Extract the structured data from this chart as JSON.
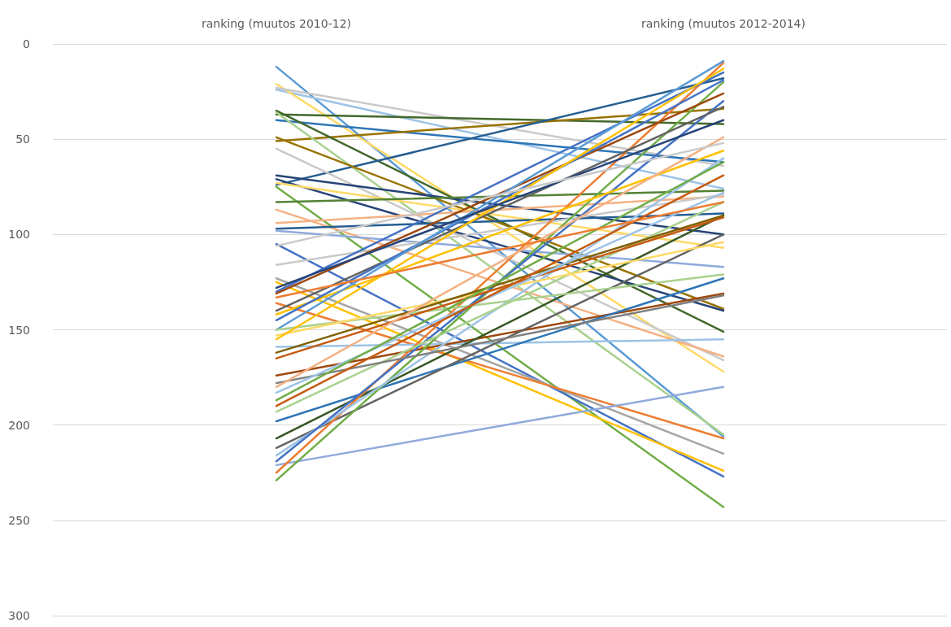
{
  "chart_data": {
    "type": "line",
    "categories": [
      "ranking (muutos 2010-12)",
      "ranking (muutos 2012-2014)"
    ],
    "ylim": [
      300,
      0
    ],
    "yticks": [
      0,
      50,
      100,
      150,
      200,
      250,
      300
    ],
    "grid": "y",
    "marker": "none",
    "line_style": "solid",
    "series": [
      {
        "color": "#5b9bd5",
        "values": [
          12,
          206
        ]
      },
      {
        "color": "#9dc3e6",
        "values": [
          24,
          76
        ]
      },
      {
        "color": "#ffd966",
        "values": [
          21,
          172
        ]
      },
      {
        "color": "#c9c9c9",
        "values": [
          23,
          64
        ]
      },
      {
        "color": "#43682b",
        "values": [
          37,
          42
        ]
      },
      {
        "color": "#2e75b6",
        "values": [
          40,
          62
        ]
      },
      {
        "color": "#997300",
        "values": [
          51,
          34
        ]
      },
      {
        "color": "#43682b",
        "values": [
          35,
          151
        ]
      },
      {
        "color": "#a9d18e",
        "values": [
          36,
          205
        ]
      },
      {
        "color": "#255e91",
        "values": [
          74,
          18
        ]
      },
      {
        "color": "#997300",
        "values": [
          49,
          139
        ]
      },
      {
        "color": "#c9c9c9",
        "values": [
          55,
          166
        ]
      },
      {
        "color": "#264478",
        "values": [
          69,
          100
        ]
      },
      {
        "color": "#264478",
        "values": [
          71,
          140
        ]
      },
      {
        "color": "#ffd966",
        "values": [
          73,
          107
        ]
      },
      {
        "color": "#70ad47",
        "values": [
          75,
          243
        ]
      },
      {
        "color": "#548235",
        "values": [
          83,
          77
        ]
      },
      {
        "color": "#f4b183",
        "values": [
          87,
          164
        ]
      },
      {
        "color": "#f4b183",
        "values": [
          94,
          80
        ]
      },
      {
        "color": "#255e91",
        "values": [
          97,
          89
        ]
      },
      {
        "color": "#8faadc",
        "values": [
          98,
          117
        ]
      },
      {
        "color": "#4472c4",
        "values": [
          105,
          227
        ]
      },
      {
        "color": "#c9c9c9",
        "values": [
          116,
          79
        ]
      },
      {
        "color": "#a5a5a5",
        "values": [
          123,
          215
        ]
      },
      {
        "color": "#ffc000",
        "values": [
          125,
          224
        ]
      },
      {
        "color": "#ed7d31",
        "values": [
          136,
          207
        ]
      },
      {
        "color": "#9dc3e6",
        "values": [
          159,
          155
        ]
      },
      {
        "color": "#9e480e",
        "values": [
          174,
          131
        ]
      },
      {
        "color": "#8faadc",
        "values": [
          221,
          180
        ]
      },
      {
        "color": "#2e75b6",
        "values": [
          198,
          123
        ]
      },
      {
        "color": "#375623",
        "values": [
          207,
          90
        ]
      },
      {
        "color": "#636363",
        "values": [
          212,
          100
        ]
      },
      {
        "color": "#ed7d31",
        "values": [
          225,
          10
        ]
      },
      {
        "color": "#70ad47",
        "values": [
          229,
          20
        ]
      },
      {
        "color": "#9dc3e6",
        "values": [
          216,
          60
        ]
      },
      {
        "color": "#4472c4",
        "values": [
          219,
          30
        ]
      },
      {
        "color": "#a9d18e",
        "values": [
          193,
          83
        ]
      },
      {
        "color": "#4472c4",
        "values": [
          130,
          15
        ]
      },
      {
        "color": "#9e480e",
        "values": [
          131,
          26
        ]
      },
      {
        "color": "#636363",
        "values": [
          140,
          33
        ]
      },
      {
        "color": "#ffc000",
        "values": [
          142,
          56
        ]
      },
      {
        "color": "#4472c4",
        "values": [
          145,
          19
        ]
      },
      {
        "color": "#5b9bd5",
        "values": [
          150,
          9
        ]
      },
      {
        "color": "#a9d18e",
        "values": [
          150,
          121
        ]
      },
      {
        "color": "#ffd966",
        "values": [
          153,
          104
        ]
      },
      {
        "color": "#7f6000",
        "values": [
          162,
          90
        ]
      },
      {
        "color": "#c55a11",
        "values": [
          165,
          91
        ]
      },
      {
        "color": "#7f7f7f",
        "values": [
          178,
          132
        ]
      },
      {
        "color": "#f4b183",
        "values": [
          180,
          49
        ]
      },
      {
        "color": "#9dc3e6",
        "values": [
          183,
          78
        ]
      },
      {
        "color": "#70ad47",
        "values": [
          187,
          62
        ]
      },
      {
        "color": "#c55a11",
        "values": [
          190,
          69
        ]
      },
      {
        "color": "#ffc000",
        "values": [
          155,
          13
        ]
      },
      {
        "color": "#264478",
        "values": [
          128,
          40
        ]
      },
      {
        "color": "#ed7d31",
        "values": [
          133,
          83
        ]
      },
      {
        "color": "#c9c9c9",
        "values": [
          106,
          52
        ]
      }
    ]
  }
}
